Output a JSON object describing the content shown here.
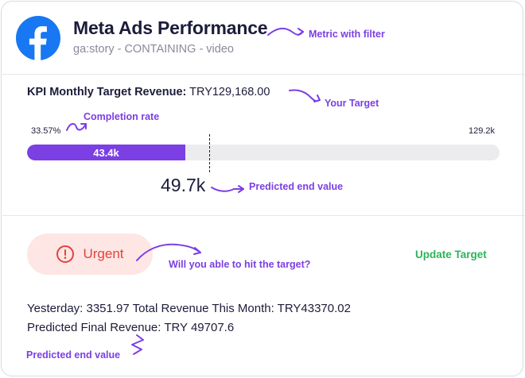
{
  "header": {
    "title": "Meta Ads Performance",
    "subtitle": "ga:story - CONTAINING - video",
    "icon": "facebook-logo-icon",
    "brand_color": "#1877F2"
  },
  "annotations": {
    "metric_with_filter": "Metric with filter",
    "your_target": "Your Target",
    "completion_rate": "Completion rate",
    "predicted_end_value_1": "Predicted end value",
    "hit_target": "Will you able to hit the target?",
    "predicted_end_value_2": "Predicted end value"
  },
  "kpi": {
    "label": "KPI Monthly Target Revenue:",
    "value": "TRY129,168.00",
    "completion_pct_label": "33.57%",
    "completion_fraction": 0.3357,
    "max_label": "129.2k",
    "current_label": "43.4k",
    "predicted_fraction": 0.3848,
    "predicted_label": "49.7k"
  },
  "status": {
    "urgency_label": "Urgent",
    "urgency_color": "#E2433B",
    "update_target_label": "Update Target"
  },
  "stats": {
    "line1": "Yesterday: 3351.97 Total Revenue This Month: TRY43370.02",
    "line2": "Predicted Final Revenue: TRY 49707.6"
  },
  "colors": {
    "accent": "#7B3FE4",
    "success": "#2BB45A"
  }
}
